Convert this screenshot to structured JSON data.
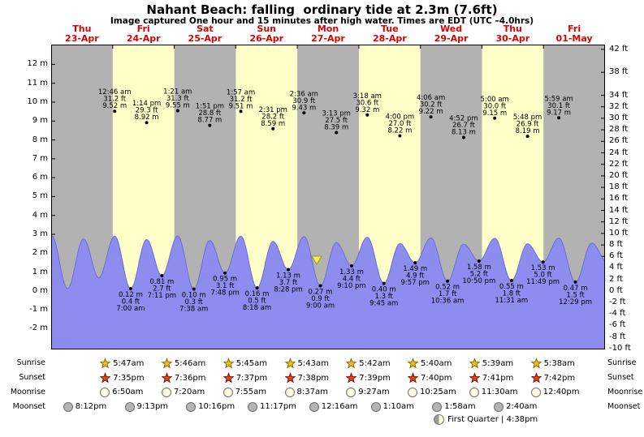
{
  "title": "Nahant Beach: falling  ordinary tide at 2.3m (7.6ft)",
  "subtitle": "Image captured One hour and 15 minutes after high water. Times are EDT (UTC –4.0hrs)",
  "days": [
    {
      "name": "Thu",
      "date": "23-Apr"
    },
    {
      "name": "Fri",
      "date": "24-Apr"
    },
    {
      "name": "Sat",
      "date": "25-Apr"
    },
    {
      "name": "Sun",
      "date": "26-Apr"
    },
    {
      "name": "Mon",
      "date": "27-Apr"
    },
    {
      "name": "Tue",
      "date": "28-Apr"
    },
    {
      "name": "Wed",
      "date": "29-Apr"
    },
    {
      "name": "Thu",
      "date": "30-Apr"
    },
    {
      "name": "Fri",
      "date": "01-May"
    }
  ],
  "chart_data": {
    "type": "area",
    "title": "Nahant Beach tide heights",
    "x_range_days": 9,
    "y_axis_left": {
      "unit": "m",
      "ticks": [
        12,
        11,
        10,
        9,
        8,
        7,
        6,
        5,
        4,
        3,
        2,
        1,
        0,
        -1,
        -2
      ],
      "range_m": [
        -3.1,
        13.05
      ]
    },
    "y_axis_right": {
      "unit": "ft",
      "ticks": [
        42,
        38,
        34,
        32,
        30,
        28,
        26,
        24,
        22,
        20,
        18,
        16,
        14,
        12,
        10,
        8,
        6,
        4,
        2,
        0,
        -2,
        -4,
        -6,
        -8,
        -10
      ]
    },
    "high_tides": [
      {
        "day": 1,
        "time": "12:46 am",
        "ft": "31.2",
        "m": "9.52"
      },
      {
        "day": 1,
        "time": "1:14 pm",
        "ft": "29.3",
        "m": "8.92"
      },
      {
        "day": 2,
        "time": "1:21 am",
        "ft": "31.3",
        "m": "9.55"
      },
      {
        "day": 2,
        "time": "1:51 pm",
        "ft": "28.8",
        "m": "8.77"
      },
      {
        "day": 3,
        "time": "1:57 am",
        "ft": "31.2",
        "m": "9.51"
      },
      {
        "day": 3,
        "time": "2:31 pm",
        "ft": "28.2",
        "m": "8.59"
      },
      {
        "day": 4,
        "time": "2:36 am",
        "ft": "30.9",
        "m": "9.43"
      },
      {
        "day": 4,
        "time": "3:13 pm",
        "ft": "27.5",
        "m": "8.39"
      },
      {
        "day": 5,
        "time": "3:18 am",
        "ft": "30.6",
        "m": "9.32"
      },
      {
        "day": 5,
        "time": "4:00 pm",
        "ft": "27.0",
        "m": "8.22"
      },
      {
        "day": 6,
        "time": "4:06 am",
        "ft": "30.2",
        "m": "9.22"
      },
      {
        "day": 6,
        "time": "4:52 pm",
        "ft": "26.7",
        "m": "8.13"
      },
      {
        "day": 7,
        "time": "5:00 am",
        "ft": "30.0",
        "m": "9.15"
      },
      {
        "day": 7,
        "time": "5:48 pm",
        "ft": "26.9",
        "m": "8.19"
      },
      {
        "day": 8,
        "time": "5:59 am",
        "ft": "30.1",
        "m": "9.17"
      }
    ],
    "low_tides": [
      {
        "day": 1,
        "m": "0.12",
        "ft": "0.4",
        "time": "7:00 am"
      },
      {
        "day": 1,
        "m": "0.81",
        "ft": "2.7",
        "time": "7:11 pm"
      },
      {
        "day": 2,
        "m": "0.10",
        "ft": "0.3",
        "time": "7:38 am"
      },
      {
        "day": 2,
        "m": "0.95",
        "ft": "3.1",
        "time": "7:48 pm"
      },
      {
        "day": 3,
        "m": "0.16",
        "ft": "0.5",
        "time": "8:18 am"
      },
      {
        "day": 3,
        "m": "1.13",
        "ft": "3.7",
        "time": "8:28 pm"
      },
      {
        "day": 4,
        "m": "0.27",
        "ft": "0.9",
        "time": "9:00 am"
      },
      {
        "day": 4,
        "m": "1.33",
        "ft": "4.4",
        "time": "9:10 pm"
      },
      {
        "day": 5,
        "m": "0.40",
        "ft": "1.3",
        "time": "9:45 am"
      },
      {
        "day": 5,
        "m": "1.49",
        "ft": "4.9",
        "time": "9:57 pm"
      },
      {
        "day": 6,
        "m": "0.52",
        "ft": "1.7",
        "time": "10:36 am"
      },
      {
        "day": 6,
        "m": "1.58",
        "ft": "5.2",
        "time": "10:50 pm"
      },
      {
        "day": 7,
        "m": "0.55",
        "ft": "1.8",
        "time": "11:31 am"
      },
      {
        "day": 7,
        "m": "1.53",
        "ft": "5.0",
        "time": "11:49 pm"
      },
      {
        "day": 8,
        "m": "0.47",
        "ft": "1.5",
        "time": "12:29 pm"
      }
    ],
    "current_tide_marker": {
      "description": "falling tide at 2.3m (7.6ft)"
    }
  },
  "almanac": {
    "rows": [
      {
        "id": "sunrise",
        "label": "Sunrise",
        "icon": "sunrise-star-icon",
        "times": [
          "5:47am",
          "5:46am",
          "5:45am",
          "5:43am",
          "5:42am",
          "5:40am",
          "5:39am",
          "5:38am"
        ]
      },
      {
        "id": "sunset",
        "label": "Sunset",
        "icon": "sunset-star-icon",
        "times": [
          "7:35pm",
          "7:36pm",
          "7:37pm",
          "7:38pm",
          "7:39pm",
          "7:40pm",
          "7:41pm",
          "7:42pm"
        ]
      },
      {
        "id": "moonrise",
        "label": "Moonrise",
        "icon": "moonrise-icon",
        "times": [
          "6:50am",
          "7:20am",
          "7:55am",
          "8:37am",
          "9:27am",
          "10:25am",
          "11:30am",
          "12:40pm"
        ]
      },
      {
        "id": "moonset",
        "label": "Moonset",
        "icon": "moonset-icon",
        "times": [
          "8:12pm",
          "9:13pm",
          "10:16pm",
          "11:17pm",
          "12:16am",
          "1:10am",
          "1:58am",
          "2:40am"
        ]
      }
    ],
    "moon_phase": {
      "icon": "first-quarter-moon-icon",
      "text": "First Quarter | 4:38pm"
    }
  },
  "colors": {
    "header_red": "#dd0000",
    "chart_bg": "#ffffc9",
    "day_band": "#b2b2b2",
    "tide_fill": "#8d8df0",
    "tide_stroke": "#6b6bd6",
    "sunrise_star": "#f2c21c",
    "sunset_star": "#e8401c",
    "moonrise_fill": "#ffffd9",
    "moonset_fill": "#b5b5b5",
    "marker_fill": "#eeee66"
  }
}
